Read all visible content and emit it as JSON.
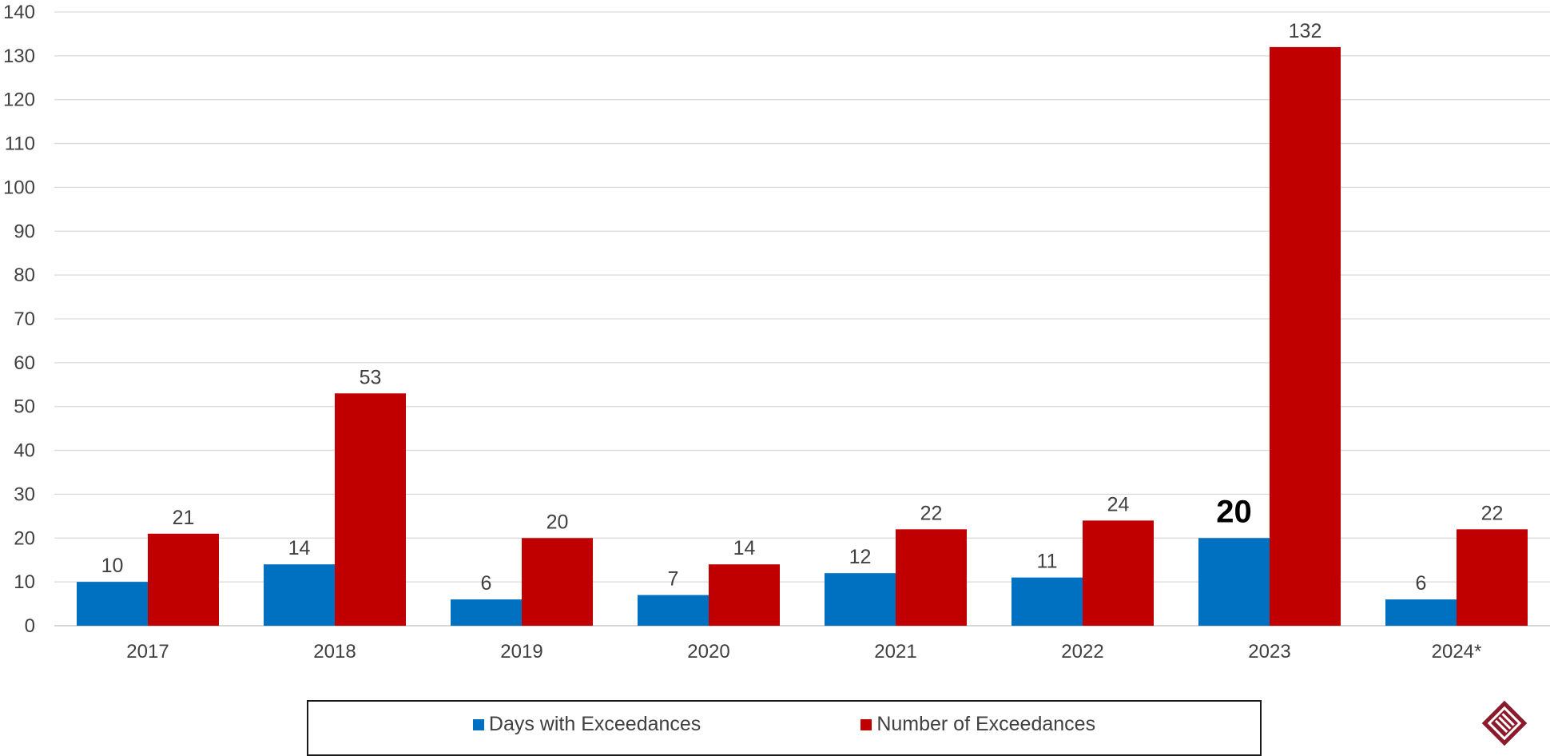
{
  "chart_data": {
    "type": "bar",
    "title": "",
    "xlabel": "",
    "ylabel": "",
    "categories": [
      "2017",
      "2018",
      "2019",
      "2020",
      "2021",
      "2022",
      "2023",
      "2024*"
    ],
    "series": [
      {
        "name": "Days with Exceedances",
        "color": "#0070C0",
        "values": [
          10,
          14,
          6,
          7,
          12,
          11,
          20,
          6
        ]
      },
      {
        "name": "Number of Exceedances",
        "color": "#C00000",
        "values": [
          21,
          53,
          20,
          14,
          22,
          24,
          132,
          22
        ]
      }
    ],
    "highlighted_label": {
      "series": 0,
      "category": "2023"
    },
    "ylim": [
      0,
      140
    ],
    "yticks": [
      0,
      10,
      20,
      30,
      40,
      50,
      60,
      70,
      80,
      90,
      100,
      110,
      120,
      130,
      140
    ],
    "grid": true,
    "legend_position": "bottom"
  },
  "logo": {
    "icon": "diamond-logo-icon",
    "color": "#8B1A2B"
  }
}
